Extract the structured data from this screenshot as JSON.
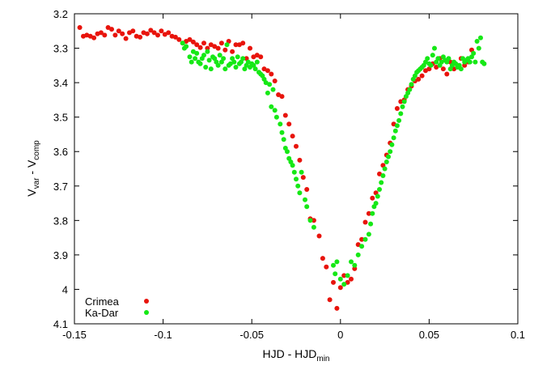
{
  "chart_data": {
    "type": "scatter",
    "title": "",
    "xlabel": {
      "main": "HJD - HJD",
      "sub": "min"
    },
    "ylabel": {
      "p1": "V",
      "s1": "var",
      "p2": " - V",
      "s2": "comp"
    },
    "xlim": [
      -0.15,
      0.1
    ],
    "ylim": [
      3.2,
      4.1
    ],
    "y_inverted": true,
    "x_ticks": [
      -0.15,
      -0.1,
      -0.05,
      0,
      0.05,
      0.1
    ],
    "x_tick_labels": [
      "-0.15",
      "-0.1",
      "-0.05",
      "0",
      "0.05",
      "0.1"
    ],
    "y_ticks": [
      3.2,
      3.3,
      3.4,
      3.5,
      3.6,
      3.7,
      3.8,
      3.9,
      4.0,
      4.1
    ],
    "y_tick_labels": [
      "3.2",
      "3.3",
      "3.4",
      "3.5",
      "3.6",
      "3.7",
      "3.8",
      "3.9",
      "4",
      "4.1"
    ],
    "grid": false,
    "legend_position": "bottom-left",
    "series": [
      {
        "name": "Crimea",
        "color": "#e8140c",
        "points": [
          [
            -0.147,
            3.24
          ],
          [
            -0.145,
            3.265
          ],
          [
            -0.143,
            3.262
          ],
          [
            -0.141,
            3.265
          ],
          [
            -0.139,
            3.27
          ],
          [
            -0.137,
            3.258
          ],
          [
            -0.135,
            3.255
          ],
          [
            -0.133,
            3.262
          ],
          [
            -0.131,
            3.24
          ],
          [
            -0.129,
            3.245
          ],
          [
            -0.127,
            3.262
          ],
          [
            -0.125,
            3.25
          ],
          [
            -0.123,
            3.258
          ],
          [
            -0.121,
            3.272
          ],
          [
            -0.119,
            3.255
          ],
          [
            -0.117,
            3.25
          ],
          [
            -0.115,
            3.265
          ],
          [
            -0.113,
            3.268
          ],
          [
            -0.111,
            3.255
          ],
          [
            -0.109,
            3.258
          ],
          [
            -0.107,
            3.248
          ],
          [
            -0.105,
            3.255
          ],
          [
            -0.103,
            3.262
          ],
          [
            -0.101,
            3.25
          ],
          [
            -0.099,
            3.26
          ],
          [
            -0.097,
            3.255
          ],
          [
            -0.095,
            3.265
          ],
          [
            -0.093,
            3.268
          ],
          [
            -0.091,
            3.275
          ],
          [
            -0.089,
            3.285
          ],
          [
            -0.087,
            3.28
          ],
          [
            -0.085,
            3.275
          ],
          [
            -0.083,
            3.282
          ],
          [
            -0.081,
            3.29
          ],
          [
            -0.079,
            3.298
          ],
          [
            -0.077,
            3.285
          ],
          [
            -0.075,
            3.3
          ],
          [
            -0.073,
            3.29
          ],
          [
            -0.071,
            3.295
          ],
          [
            -0.069,
            3.3
          ],
          [
            -0.067,
            3.285
          ],
          [
            -0.065,
            3.305
          ],
          [
            -0.063,
            3.28
          ],
          [
            -0.061,
            3.31
          ],
          [
            -0.059,
            3.29
          ],
          [
            -0.057,
            3.29
          ],
          [
            -0.055,
            3.285
          ],
          [
            -0.053,
            3.33
          ],
          [
            -0.051,
            3.3
          ],
          [
            -0.049,
            3.325
          ],
          [
            -0.047,
            3.32
          ],
          [
            -0.045,
            3.325
          ],
          [
            -0.043,
            3.36
          ],
          [
            -0.041,
            3.365
          ],
          [
            -0.039,
            3.375
          ],
          [
            -0.037,
            3.395
          ],
          [
            -0.035,
            3.435
          ],
          [
            -0.033,
            3.44
          ],
          [
            -0.031,
            3.495
          ],
          [
            -0.029,
            3.52
          ],
          [
            -0.027,
            3.555
          ],
          [
            -0.025,
            3.585
          ],
          [
            -0.023,
            3.625
          ],
          [
            -0.021,
            3.675
          ],
          [
            -0.019,
            3.71
          ],
          [
            -0.017,
            3.795
          ],
          [
            -0.015,
            3.8
          ],
          [
            -0.012,
            3.845
          ],
          [
            -0.01,
            3.91
          ],
          [
            -0.008,
            3.935
          ],
          [
            -0.006,
            4.03
          ],
          [
            -0.004,
            3.98
          ],
          [
            -0.002,
            4.055
          ],
          [
            0.0,
            3.995
          ],
          [
            0.002,
            3.96
          ],
          [
            0.004,
            3.98
          ],
          [
            0.006,
            3.97
          ],
          [
            0.008,
            3.94
          ],
          [
            0.01,
            3.87
          ],
          [
            0.012,
            3.855
          ],
          [
            0.014,
            3.805
          ],
          [
            0.016,
            3.78
          ],
          [
            0.018,
            3.735
          ],
          [
            0.02,
            3.72
          ],
          [
            0.022,
            3.665
          ],
          [
            0.024,
            3.64
          ],
          [
            0.026,
            3.61
          ],
          [
            0.028,
            3.575
          ],
          [
            0.03,
            3.52
          ],
          [
            0.032,
            3.475
          ],
          [
            0.034,
            3.455
          ],
          [
            0.036,
            3.45
          ],
          [
            0.038,
            3.42
          ],
          [
            0.04,
            3.41
          ],
          [
            0.042,
            3.395
          ],
          [
            0.044,
            3.39
          ],
          [
            0.046,
            3.38
          ],
          [
            0.048,
            3.365
          ],
          [
            0.05,
            3.36
          ],
          [
            0.052,
            3.345
          ],
          [
            0.054,
            3.355
          ],
          [
            0.056,
            3.33
          ],
          [
            0.058,
            3.36
          ],
          [
            0.06,
            3.375
          ],
          [
            0.062,
            3.34
          ],
          [
            0.064,
            3.36
          ],
          [
            0.066,
            3.35
          ],
          [
            0.068,
            3.33
          ],
          [
            0.07,
            3.35
          ],
          [
            0.072,
            3.34
          ],
          [
            0.074,
            3.305
          ]
        ]
      },
      {
        "name": "Ka-Dar",
        "color": "#16e816",
        "points": [
          [
            -0.089,
            3.285
          ],
          [
            -0.088,
            3.3
          ],
          [
            -0.087,
            3.295
          ],
          [
            -0.085,
            3.325
          ],
          [
            -0.084,
            3.34
          ],
          [
            -0.083,
            3.31
          ],
          [
            -0.082,
            3.33
          ],
          [
            -0.081,
            3.315
          ],
          [
            -0.08,
            3.34
          ],
          [
            -0.079,
            3.345
          ],
          [
            -0.078,
            3.33
          ],
          [
            -0.077,
            3.32
          ],
          [
            -0.076,
            3.355
          ],
          [
            -0.075,
            3.31
          ],
          [
            -0.074,
            3.335
          ],
          [
            -0.073,
            3.36
          ],
          [
            -0.072,
            3.325
          ],
          [
            -0.071,
            3.33
          ],
          [
            -0.07,
            3.34
          ],
          [
            -0.069,
            3.35
          ],
          [
            -0.068,
            3.32
          ],
          [
            -0.067,
            3.34
          ],
          [
            -0.066,
            3.33
          ],
          [
            -0.065,
            3.36
          ],
          [
            -0.064,
            3.29
          ],
          [
            -0.063,
            3.35
          ],
          [
            -0.062,
            3.345
          ],
          [
            -0.061,
            3.33
          ],
          [
            -0.06,
            3.34
          ],
          [
            -0.059,
            3.355
          ],
          [
            -0.058,
            3.325
          ],
          [
            -0.057,
            3.345
          ],
          [
            -0.056,
            3.34
          ],
          [
            -0.055,
            3.33
          ],
          [
            -0.054,
            3.36
          ],
          [
            -0.053,
            3.35
          ],
          [
            -0.052,
            3.34
          ],
          [
            -0.051,
            3.355
          ],
          [
            -0.05,
            3.345
          ],
          [
            -0.049,
            3.35
          ],
          [
            -0.048,
            3.36
          ],
          [
            -0.047,
            3.34
          ],
          [
            -0.046,
            3.37
          ],
          [
            -0.045,
            3.375
          ],
          [
            -0.044,
            3.38
          ],
          [
            -0.043,
            3.39
          ],
          [
            -0.042,
            3.4
          ],
          [
            -0.041,
            3.43
          ],
          [
            -0.04,
            3.405
          ],
          [
            -0.039,
            3.47
          ],
          [
            -0.038,
            3.42
          ],
          [
            -0.037,
            3.48
          ],
          [
            -0.036,
            3.5
          ],
          [
            -0.034,
            3.52
          ],
          [
            -0.033,
            3.545
          ],
          [
            -0.032,
            3.565
          ],
          [
            -0.031,
            3.59
          ],
          [
            -0.03,
            3.6
          ],
          [
            -0.029,
            3.62
          ],
          [
            -0.028,
            3.63
          ],
          [
            -0.027,
            3.64
          ],
          [
            -0.026,
            3.66
          ],
          [
            -0.025,
            3.68
          ],
          [
            -0.024,
            3.7
          ],
          [
            -0.023,
            3.72
          ],
          [
            -0.022,
            3.66
          ],
          [
            -0.02,
            3.74
          ],
          [
            -0.019,
            3.76
          ],
          [
            -0.017,
            3.8
          ],
          [
            -0.015,
            3.82
          ],
          [
            -0.004,
            3.93
          ],
          [
            -0.003,
            3.955
          ],
          [
            -0.002,
            3.92
          ],
          [
            0.0,
            3.97
          ],
          [
            0.002,
            3.985
          ],
          [
            0.004,
            3.96
          ],
          [
            0.006,
            3.92
          ],
          [
            0.008,
            3.93
          ],
          [
            0.01,
            3.9
          ],
          [
            0.012,
            3.875
          ],
          [
            0.014,
            3.855
          ],
          [
            0.016,
            3.84
          ],
          [
            0.017,
            3.81
          ],
          [
            0.018,
            3.78
          ],
          [
            0.019,
            3.76
          ],
          [
            0.02,
            3.75
          ],
          [
            0.021,
            3.73
          ],
          [
            0.022,
            3.71
          ],
          [
            0.023,
            3.69
          ],
          [
            0.024,
            3.67
          ],
          [
            0.025,
            3.65
          ],
          [
            0.026,
            3.63
          ],
          [
            0.027,
            3.615
          ],
          [
            0.028,
            3.6
          ],
          [
            0.029,
            3.58
          ],
          [
            0.03,
            3.56
          ],
          [
            0.031,
            3.54
          ],
          [
            0.032,
            3.525
          ],
          [
            0.033,
            3.51
          ],
          [
            0.034,
            3.49
          ],
          [
            0.035,
            3.47
          ],
          [
            0.036,
            3.455
          ],
          [
            0.037,
            3.44
          ],
          [
            0.038,
            3.43
          ],
          [
            0.039,
            3.42
          ],
          [
            0.04,
            3.405
          ],
          [
            0.041,
            3.39
          ],
          [
            0.042,
            3.38
          ],
          [
            0.043,
            3.37
          ],
          [
            0.044,
            3.365
          ],
          [
            0.045,
            3.36
          ],
          [
            0.046,
            3.355
          ],
          [
            0.047,
            3.35
          ],
          [
            0.048,
            3.34
          ],
          [
            0.049,
            3.33
          ],
          [
            0.05,
            3.345
          ],
          [
            0.051,
            3.35
          ],
          [
            0.052,
            3.32
          ],
          [
            0.053,
            3.3
          ],
          [
            0.054,
            3.34
          ],
          [
            0.055,
            3.33
          ],
          [
            0.056,
            3.35
          ],
          [
            0.057,
            3.34
          ],
          [
            0.058,
            3.325
          ],
          [
            0.059,
            3.335
          ],
          [
            0.06,
            3.34
          ],
          [
            0.061,
            3.33
          ],
          [
            0.062,
            3.36
          ],
          [
            0.063,
            3.35
          ],
          [
            0.064,
            3.34
          ],
          [
            0.065,
            3.345
          ],
          [
            0.066,
            3.355
          ],
          [
            0.067,
            3.35
          ],
          [
            0.068,
            3.36
          ],
          [
            0.069,
            3.33
          ],
          [
            0.07,
            3.34
          ],
          [
            0.071,
            3.335
          ],
          [
            0.072,
            3.33
          ],
          [
            0.073,
            3.34
          ],
          [
            0.074,
            3.325
          ],
          [
            0.075,
            3.315
          ],
          [
            0.076,
            3.34
          ],
          [
            0.077,
            3.28
          ],
          [
            0.078,
            3.3
          ],
          [
            0.079,
            3.27
          ],
          [
            0.08,
            3.34
          ],
          [
            0.081,
            3.345
          ]
        ]
      }
    ]
  }
}
